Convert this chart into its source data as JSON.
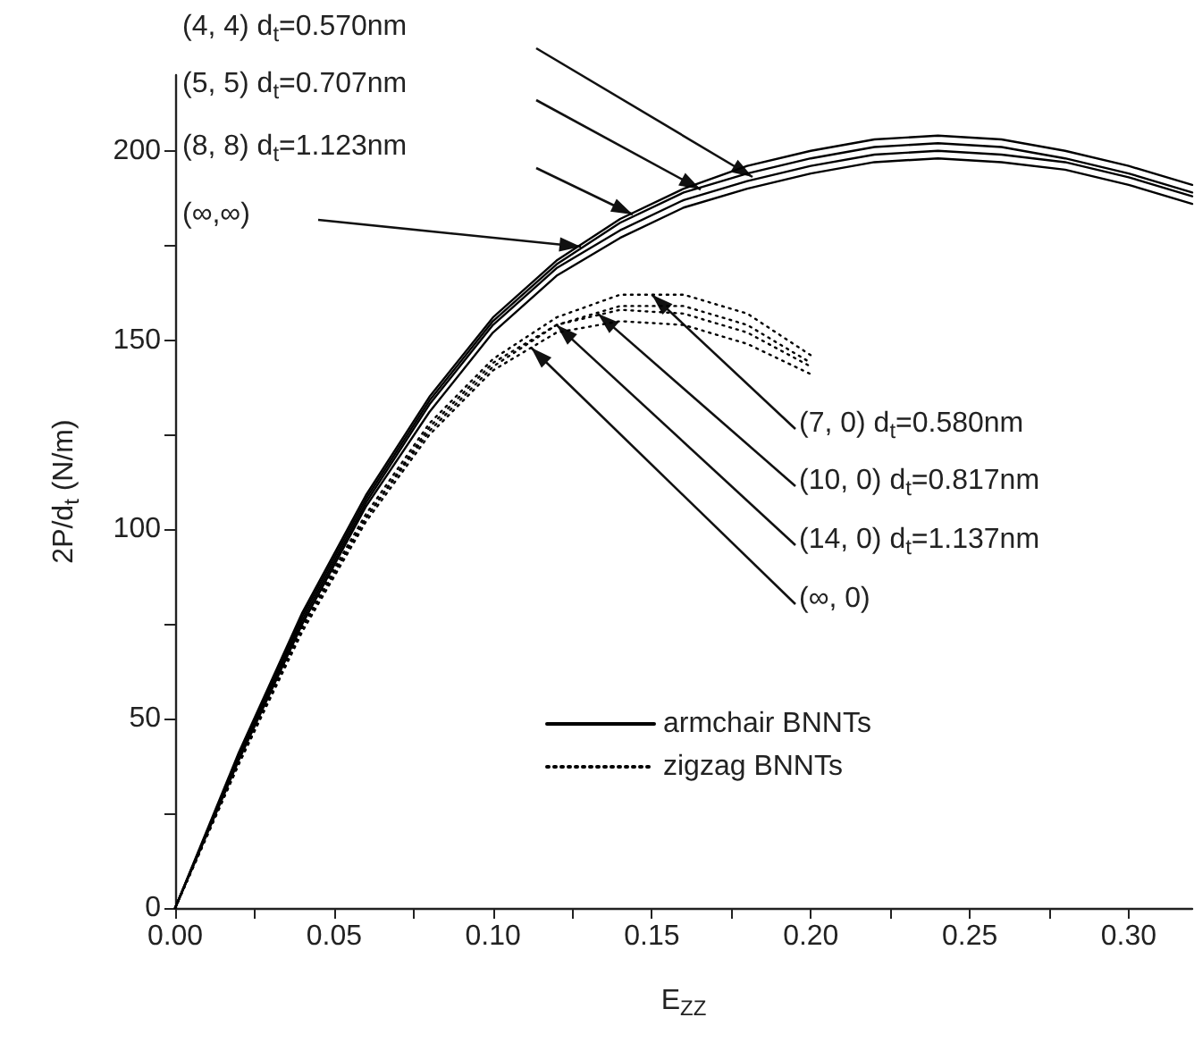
{
  "chart_data": {
    "type": "line",
    "xlabel": "E$_{ZZ}$",
    "ylabel": "2P/d$_{t}$ (N/m)",
    "xlim": [
      0,
      0.32
    ],
    "ylim": [
      0,
      220
    ],
    "xticks": [
      {
        "value": 0,
        "label": "0.00"
      },
      {
        "value": 0.025,
        "label": null
      },
      {
        "value": 0.05,
        "label": "0.05"
      },
      {
        "value": 0.075,
        "label": null
      },
      {
        "value": 0.1,
        "label": "0.10"
      },
      {
        "value": 0.125,
        "label": null
      },
      {
        "value": 0.15,
        "label": "0.15"
      },
      {
        "value": 0.175,
        "label": null
      },
      {
        "value": 0.2,
        "label": "0.20"
      },
      {
        "value": 0.225,
        "label": null
      },
      {
        "value": 0.25,
        "label": "0.25"
      },
      {
        "value": 0.275,
        "label": null
      },
      {
        "value": 0.3,
        "label": "0.30"
      }
    ],
    "yticks": [
      0,
      {
        "value": 25,
        "label": null
      },
      50,
      {
        "value": 75,
        "label": null
      },
      100,
      {
        "value": 125,
        "label": null
      },
      150,
      {
        "value": 175,
        "label": null
      },
      200
    ],
    "grid": false,
    "legend": "bottom",
    "marker": "none",
    "series": [
      {
        "name": "armchair BNNTs",
        "color": "#000000",
        "line_style": "solid",
        "x": [
          0,
          0.02,
          0.04,
          0.06,
          0.08,
          0.1,
          0.12,
          0.14,
          0.16,
          0.18,
          0.2,
          0.22,
          0.24,
          0.26,
          0.28,
          0.3,
          0.32
        ],
        "values": [
          0,
          41,
          78,
          109,
          135,
          156,
          171,
          182,
          190,
          196,
          200,
          203,
          204,
          203,
          200,
          196,
          191
        ]
      },
      {
        "color": "#000000",
        "line_style": "solid",
        "x": [
          0,
          0.02,
          0.04,
          0.06,
          0.08,
          0.1,
          0.12,
          0.14,
          0.16,
          0.18,
          0.2,
          0.22,
          0.24,
          0.26,
          0.28,
          0.3,
          0.32
        ],
        "values": [
          0,
          40,
          77,
          108,
          134,
          155,
          170,
          181,
          189,
          194,
          198,
          201,
          202,
          201,
          198,
          194,
          189
        ]
      },
      {
        "color": "#000000",
        "line_style": "solid",
        "x": [
          0,
          0.02,
          0.04,
          0.06,
          0.08,
          0.1,
          0.12,
          0.14,
          0.16,
          0.18,
          0.2,
          0.22,
          0.24,
          0.26,
          0.28,
          0.3,
          0.32
        ],
        "values": [
          0,
          40,
          76,
          107,
          133,
          154,
          169,
          179,
          187,
          192,
          196,
          199,
          200,
          199,
          197,
          193,
          188
        ]
      },
      {
        "color": "#000000",
        "line_style": "solid",
        "x": [
          0,
          0.02,
          0.04,
          0.06,
          0.08,
          0.1,
          0.12,
          0.14,
          0.16,
          0.18,
          0.2,
          0.22,
          0.24,
          0.26,
          0.28,
          0.3,
          0.32
        ],
        "values": [
          0,
          39,
          75,
          106,
          131,
          152,
          167,
          177,
          185,
          190,
          194,
          197,
          198,
          197,
          195,
          191,
          186
        ]
      },
      {
        "name": "zigzag BNNTs",
        "color": "#000000",
        "line_style": "dotted",
        "x": [
          0,
          0.02,
          0.04,
          0.06,
          0.08,
          0.1,
          0.12,
          0.14,
          0.16,
          0.18,
          0.2
        ],
        "values": [
          0,
          39,
          75,
          104,
          128,
          145,
          156,
          162,
          162,
          157,
          146
        ]
      },
      {
        "color": "#000000",
        "line_style": "dotted",
        "x": [
          0,
          0.02,
          0.04,
          0.06,
          0.08,
          0.1,
          0.12,
          0.14,
          0.16,
          0.18,
          0.2
        ],
        "values": [
          0,
          39,
          74,
          103,
          126,
          143,
          154,
          159,
          159,
          154,
          144
        ]
      },
      {
        "color": "#000000",
        "line_style": "dotted",
        "x": [
          0,
          0.02,
          0.04,
          0.06,
          0.08,
          0.1,
          0.12,
          0.14,
          0.16,
          0.18,
          0.2
        ],
        "values": [
          0,
          38,
          74,
          103,
          127,
          144,
          154,
          158,
          157,
          152,
          143
        ]
      },
      {
        "color": "#000000",
        "line_style": "dotted",
        "x": [
          0,
          0.02,
          0.04,
          0.06,
          0.08,
          0.1,
          0.12,
          0.14,
          0.16,
          0.18,
          0.2
        ],
        "values": [
          0,
          38,
          73,
          102,
          125,
          142,
          152,
          155,
          154,
          149,
          141
        ]
      }
    ],
    "annotations": [
      "(4, 4) d$_{t}$=0.570nm",
      "(5, 5) d$_{t}$=0.707nm",
      "(8, 8) d$_{t}$=1.123nm",
      "(∞,∞)",
      {
        "text": "(7, 0) d$_{t}$=0.580nm",
        "x": 0.15,
        "y": 162
      },
      {
        "text": "(10, 0) d$_{t}$=0.817nm",
        "x": 0.133,
        "y": 157
      },
      {
        "text": "(14, 0) d$_{t}$=1.137nm",
        "x": 0.12,
        "y": 154
      },
      {
        "text": "(∞, 0)",
        "x": 0.112,
        "y": 148
      }
    ]
  }
}
